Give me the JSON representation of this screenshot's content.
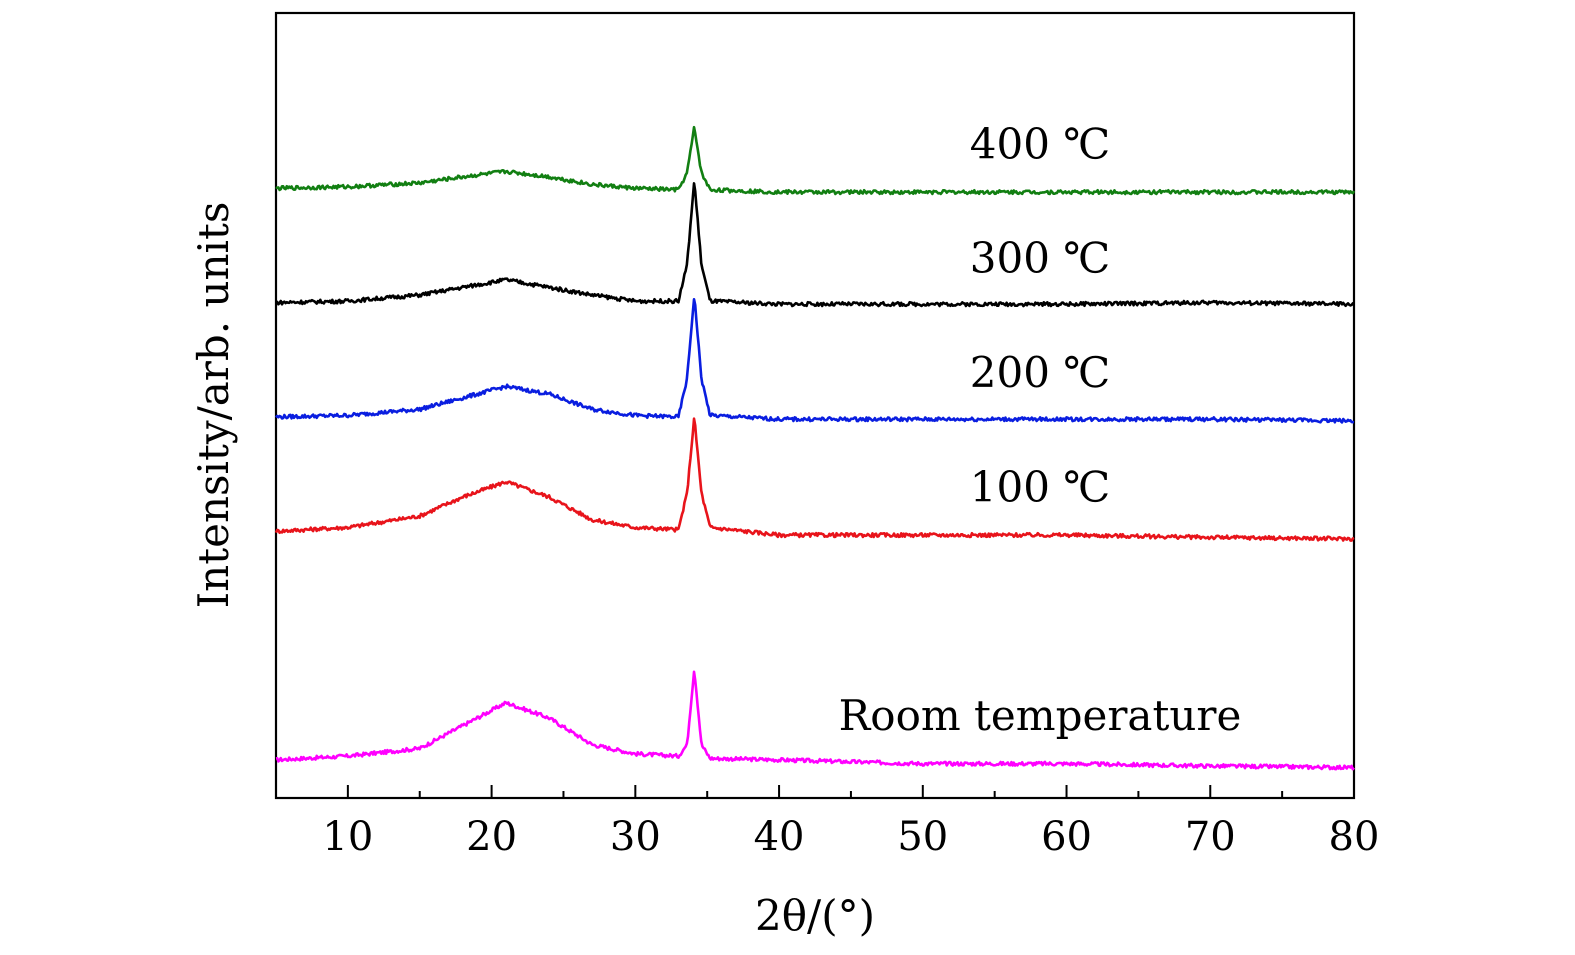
{
  "chart_data": {
    "type": "line",
    "xlabel": "2θ/(°)",
    "ylabel": "Intensity/arb. units",
    "xlim": [
      5,
      80
    ],
    "x_ticks": [
      "10",
      "20",
      "30",
      "40",
      "50",
      "60",
      "70",
      "80"
    ],
    "y_ticks": [],
    "series": [
      {
        "name": "Room temperature",
        "color": "#ff00ff",
        "baseline": 0.0,
        "points": [
          [
            5,
            0.0
          ],
          [
            10,
            0.05
          ],
          [
            15,
            0.15
          ],
          [
            18,
            0.45
          ],
          [
            21,
            0.75
          ],
          [
            24,
            0.55
          ],
          [
            27,
            0.2
          ],
          [
            30,
            0.08
          ],
          [
            33,
            0.05
          ],
          [
            33.6,
            0.2
          ],
          [
            34.1,
            1.2
          ],
          [
            34.6,
            0.2
          ],
          [
            35.2,
            0.02
          ],
          [
            40,
            0.0
          ],
          [
            50,
            -0.05
          ],
          [
            60,
            -0.05
          ],
          [
            70,
            -0.08
          ],
          [
            80,
            -0.1
          ]
        ]
      },
      {
        "name": "100 ℃",
        "color": "#e8141b",
        "baseline": 3.0,
        "points": [
          [
            5,
            3.0
          ],
          [
            10,
            3.05
          ],
          [
            15,
            3.2
          ],
          [
            18,
            3.45
          ],
          [
            21,
            3.65
          ],
          [
            24,
            3.45
          ],
          [
            27,
            3.15
          ],
          [
            30,
            3.05
          ],
          [
            33,
            3.02
          ],
          [
            33.6,
            3.5
          ],
          [
            34.1,
            4.5
          ],
          [
            34.6,
            3.5
          ],
          [
            35.2,
            3.05
          ],
          [
            40,
            2.95
          ],
          [
            50,
            2.95
          ],
          [
            60,
            2.95
          ],
          [
            70,
            2.92
          ],
          [
            80,
            2.9
          ]
        ]
      },
      {
        "name": "200 ℃",
        "color": "#0a1ee0",
        "baseline": 4.5,
        "points": [
          [
            5,
            4.5
          ],
          [
            10,
            4.52
          ],
          [
            15,
            4.6
          ],
          [
            18,
            4.75
          ],
          [
            21,
            4.9
          ],
          [
            24,
            4.8
          ],
          [
            27,
            4.6
          ],
          [
            30,
            4.52
          ],
          [
            33,
            4.5
          ],
          [
            33.6,
            5.0
          ],
          [
            34.1,
            6.1
          ],
          [
            34.6,
            5.0
          ],
          [
            35.2,
            4.52
          ],
          [
            40,
            4.47
          ],
          [
            50,
            4.47
          ],
          [
            60,
            4.47
          ],
          [
            70,
            4.47
          ],
          [
            80,
            4.45
          ]
        ]
      },
      {
        "name": "300 ℃",
        "color": "#000000",
        "baseline": 6.0,
        "points": [
          [
            5,
            6.0
          ],
          [
            10,
            6.02
          ],
          [
            15,
            6.1
          ],
          [
            18,
            6.2
          ],
          [
            21,
            6.3
          ],
          [
            24,
            6.2
          ],
          [
            27,
            6.1
          ],
          [
            30,
            6.02
          ],
          [
            33,
            6.02
          ],
          [
            33.6,
            6.5
          ],
          [
            34.1,
            7.6
          ],
          [
            34.6,
            6.5
          ],
          [
            35.2,
            6.02
          ],
          [
            40,
            5.98
          ],
          [
            50,
            5.98
          ],
          [
            60,
            5.98
          ],
          [
            70,
            6.0
          ],
          [
            80,
            5.98
          ]
        ]
      },
      {
        "name": "400 ℃",
        "color": "#127f12",
        "baseline": 7.5,
        "points": [
          [
            5,
            7.5
          ],
          [
            10,
            7.52
          ],
          [
            15,
            7.57
          ],
          [
            18,
            7.65
          ],
          [
            21,
            7.72
          ],
          [
            24,
            7.65
          ],
          [
            27,
            7.55
          ],
          [
            30,
            7.5
          ],
          [
            33,
            7.48
          ],
          [
            33.6,
            7.7
          ],
          [
            34.1,
            8.3
          ],
          [
            34.6,
            7.7
          ],
          [
            35.2,
            7.48
          ],
          [
            40,
            7.45
          ],
          [
            50,
            7.45
          ],
          [
            60,
            7.45
          ],
          [
            70,
            7.45
          ],
          [
            80,
            7.45
          ]
        ]
      }
    ]
  }
}
